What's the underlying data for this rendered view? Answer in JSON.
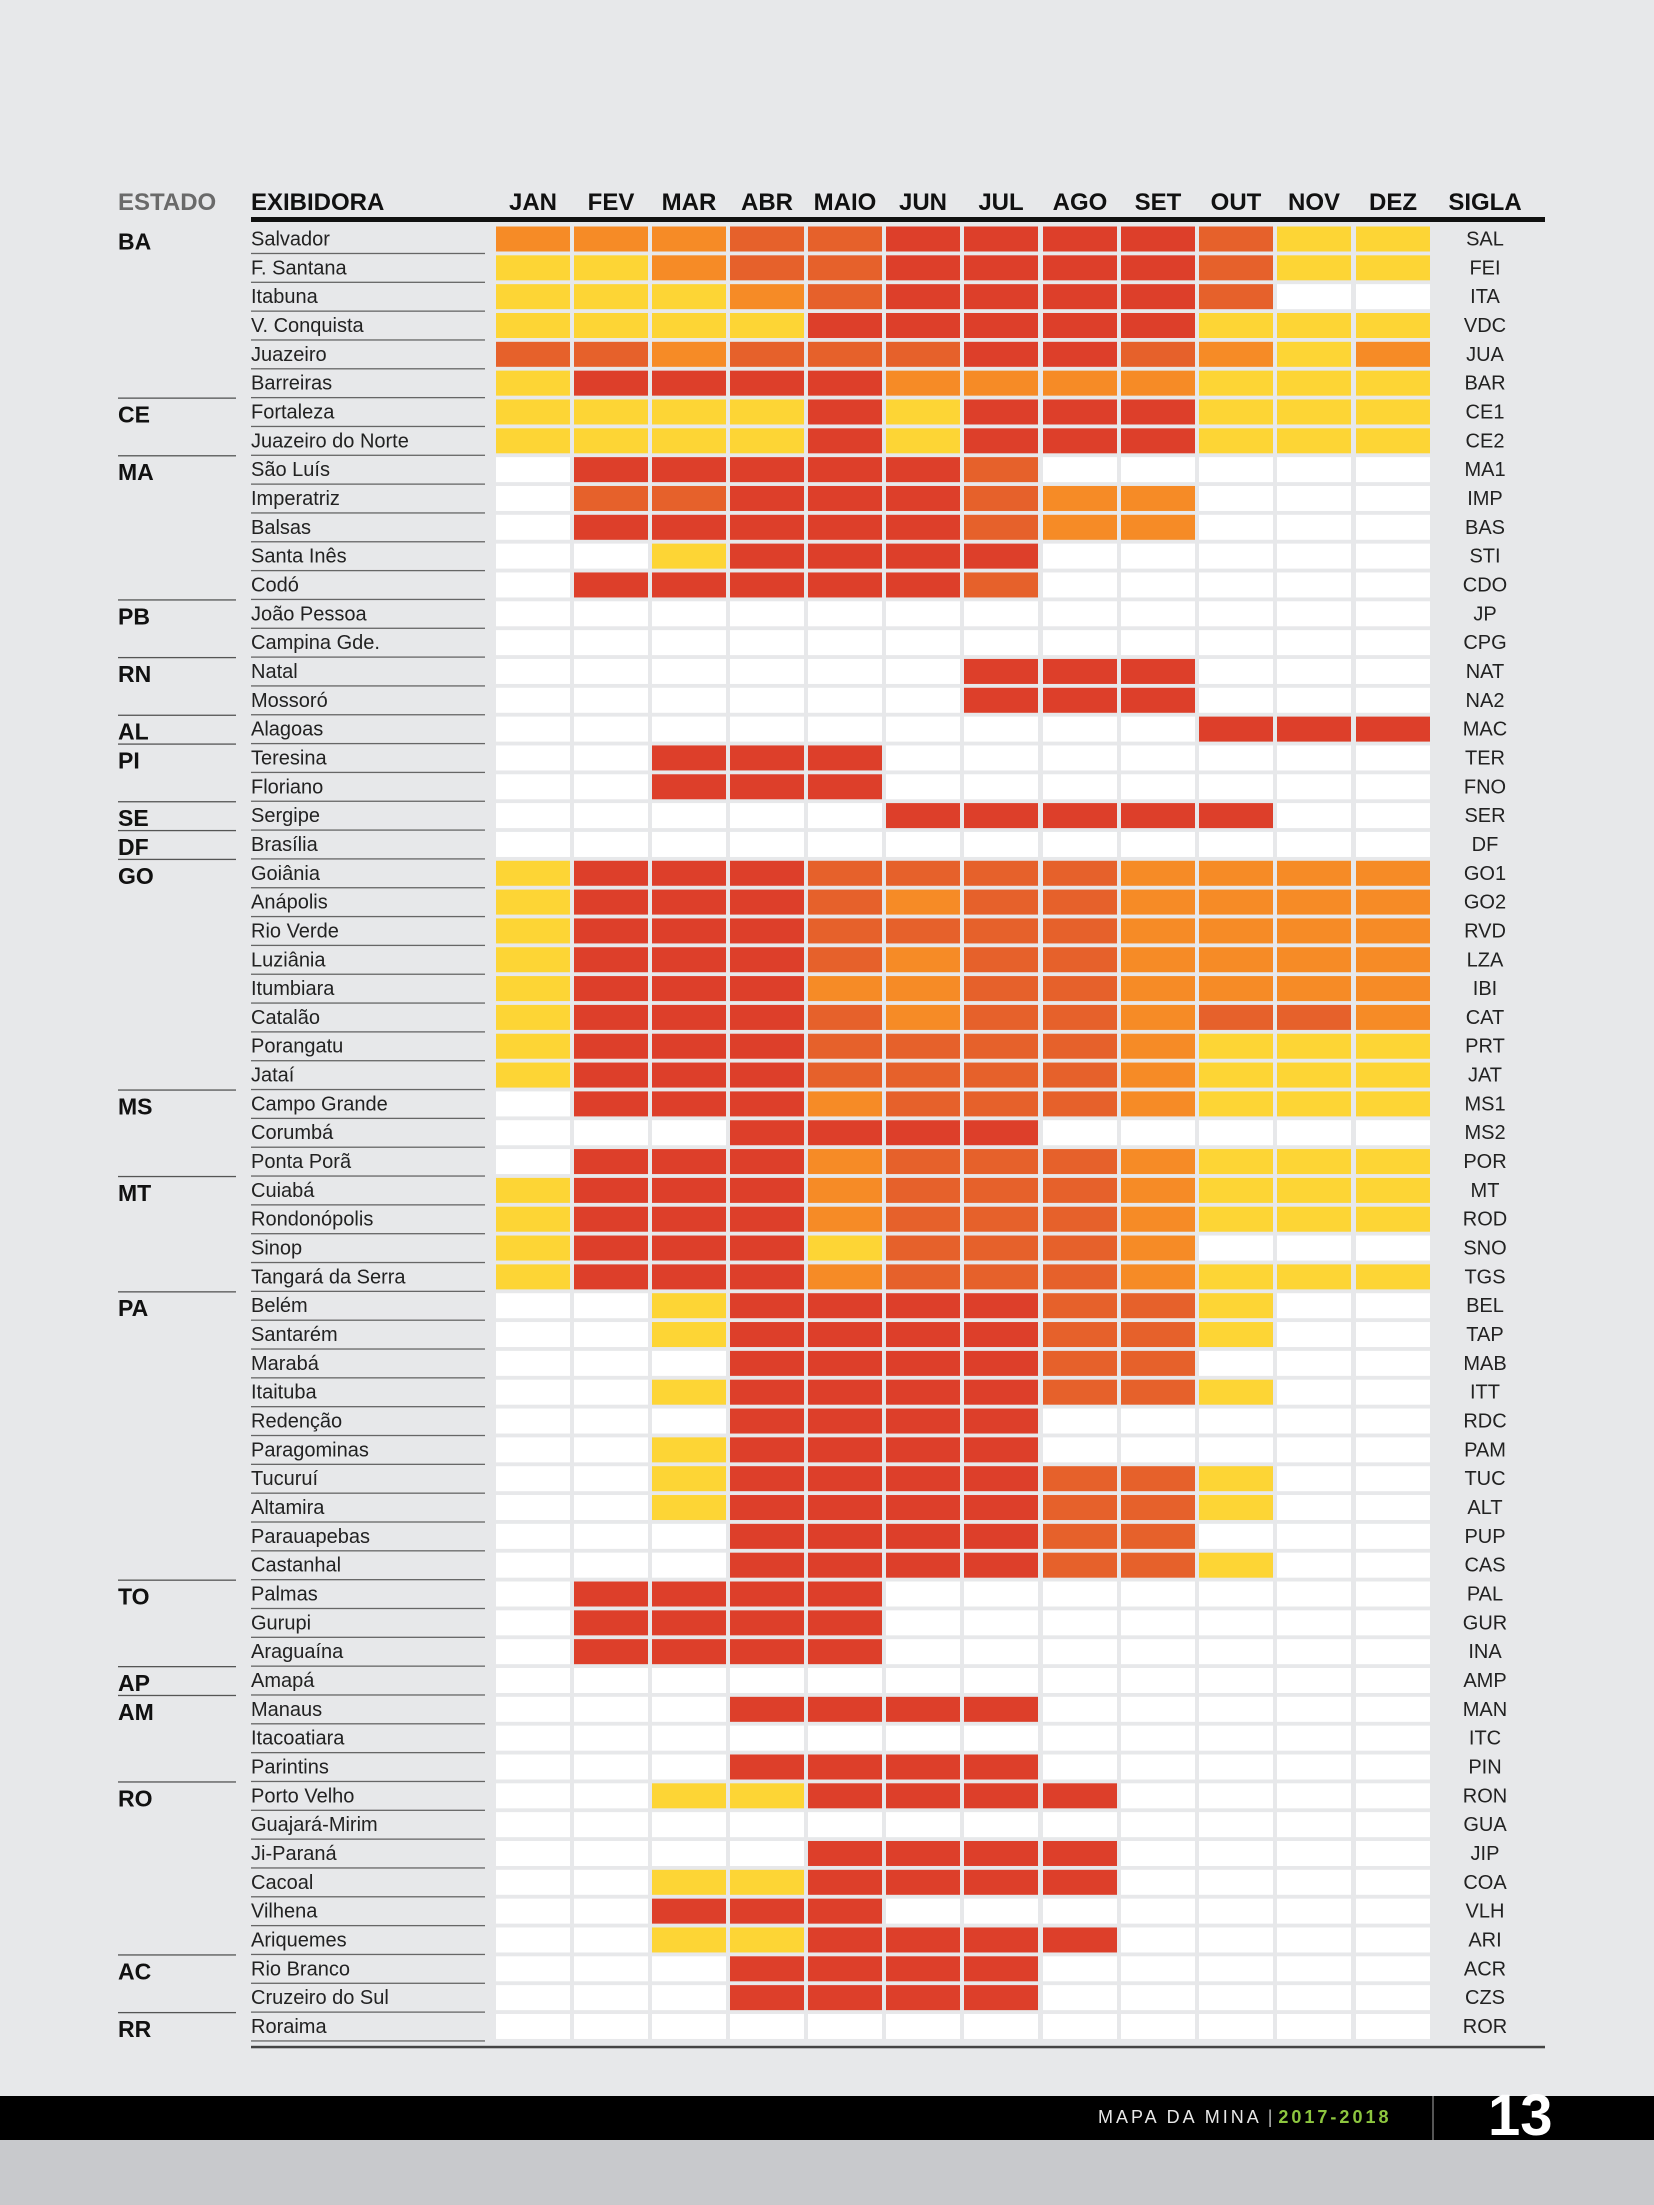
{
  "chart_data": {
    "type": "heatmap",
    "headers": {
      "estado": "ESTADO",
      "exibidora": "EXIBIDORA",
      "sigla": "SIGLA"
    },
    "months": [
      "JAN",
      "FEV",
      "MAR",
      "ABR",
      "MAIO",
      "JUN",
      "JUL",
      "AGO",
      "SET",
      "OUT",
      "NOV",
      "DEZ"
    ],
    "levels": {
      "0": "#ffffff",
      "1": "#fdd535",
      "2": "#f68b26",
      "3": "#e6612b",
      "4": "#dd3f2a"
    },
    "rows": [
      {
        "estado": "BA",
        "exibidora": "Salvador",
        "sigla": "SAL",
        "v": [
          2,
          2,
          2,
          3,
          3,
          4,
          4,
          4,
          4,
          3,
          1,
          1
        ]
      },
      {
        "estado": "",
        "exibidora": "F. Santana",
        "sigla": "FEI",
        "v": [
          1,
          1,
          2,
          3,
          3,
          4,
          4,
          4,
          4,
          3,
          1,
          1
        ]
      },
      {
        "estado": "",
        "exibidora": "Itabuna",
        "sigla": "ITA",
        "v": [
          1,
          1,
          1,
          2,
          3,
          4,
          4,
          4,
          4,
          3,
          0,
          0
        ]
      },
      {
        "estado": "",
        "exibidora": "V. Conquista",
        "sigla": "VDC",
        "v": [
          1,
          1,
          1,
          1,
          4,
          4,
          4,
          4,
          4,
          1,
          1,
          1
        ]
      },
      {
        "estado": "",
        "exibidora": "Juazeiro",
        "sigla": "JUA",
        "v": [
          3,
          3,
          2,
          3,
          3,
          3,
          4,
          4,
          3,
          2,
          1,
          2
        ]
      },
      {
        "estado": "",
        "exibidora": "Barreiras",
        "sigla": "BAR",
        "v": [
          1,
          4,
          4,
          4,
          4,
          2,
          2,
          2,
          2,
          1,
          1,
          1
        ]
      },
      {
        "estado": "CE",
        "exibidora": "Fortaleza",
        "sigla": "CE1",
        "v": [
          1,
          1,
          1,
          1,
          4,
          1,
          4,
          4,
          4,
          1,
          1,
          1
        ]
      },
      {
        "estado": "",
        "exibidora": "Juazeiro do Norte",
        "sigla": "CE2",
        "v": [
          1,
          1,
          1,
          1,
          4,
          1,
          4,
          4,
          4,
          1,
          1,
          1
        ]
      },
      {
        "estado": "MA",
        "exibidora": "São Luís",
        "sigla": "MA1",
        "v": [
          0,
          4,
          4,
          4,
          4,
          4,
          3,
          0,
          0,
          0,
          0,
          0
        ]
      },
      {
        "estado": "",
        "exibidora": "Imperatriz",
        "sigla": "IMP",
        "v": [
          0,
          3,
          3,
          4,
          4,
          4,
          3,
          2,
          2,
          0,
          0,
          0
        ]
      },
      {
        "estado": "",
        "exibidora": "Balsas",
        "sigla": "BAS",
        "v": [
          0,
          4,
          4,
          4,
          4,
          4,
          3,
          2,
          2,
          0,
          0,
          0
        ]
      },
      {
        "estado": "",
        "exibidora": "Santa Inês",
        "sigla": "STI",
        "v": [
          0,
          0,
          1,
          4,
          4,
          4,
          4,
          0,
          0,
          0,
          0,
          0
        ]
      },
      {
        "estado": "",
        "exibidora": "Codó",
        "sigla": "CDO",
        "v": [
          0,
          4,
          4,
          4,
          4,
          4,
          3,
          0,
          0,
          0,
          0,
          0
        ]
      },
      {
        "estado": "PB",
        "exibidora": "João Pessoa",
        "sigla": "JP",
        "v": [
          0,
          0,
          0,
          0,
          0,
          0,
          0,
          0,
          0,
          0,
          0,
          0
        ]
      },
      {
        "estado": "",
        "exibidora": "Campina Gde.",
        "sigla": "CPG",
        "v": [
          0,
          0,
          0,
          0,
          0,
          0,
          0,
          0,
          0,
          0,
          0,
          0
        ]
      },
      {
        "estado": "RN",
        "exibidora": "Natal",
        "sigla": "NAT",
        "v": [
          0,
          0,
          0,
          0,
          0,
          0,
          4,
          4,
          4,
          0,
          0,
          0
        ]
      },
      {
        "estado": "",
        "exibidora": "Mossoró",
        "sigla": "NA2",
        "v": [
          0,
          0,
          0,
          0,
          0,
          0,
          4,
          4,
          4,
          0,
          0,
          0
        ]
      },
      {
        "estado": "AL",
        "exibidora": "Alagoas",
        "sigla": "MAC",
        "v": [
          0,
          0,
          0,
          0,
          0,
          0,
          0,
          0,
          0,
          4,
          4,
          4
        ]
      },
      {
        "estado": "PI",
        "exibidora": "Teresina",
        "sigla": "TER",
        "v": [
          0,
          0,
          4,
          4,
          4,
          0,
          0,
          0,
          0,
          0,
          0,
          0
        ]
      },
      {
        "estado": "",
        "exibidora": "Floriano",
        "sigla": "FNO",
        "v": [
          0,
          0,
          4,
          4,
          4,
          0,
          0,
          0,
          0,
          0,
          0,
          0
        ]
      },
      {
        "estado": "SE",
        "exibidora": "Sergipe",
        "sigla": "SER",
        "v": [
          0,
          0,
          0,
          0,
          0,
          4,
          4,
          4,
          4,
          4,
          0,
          0
        ]
      },
      {
        "estado": "DF",
        "exibidora": "Brasília",
        "sigla": "DF",
        "v": [
          0,
          0,
          0,
          0,
          0,
          0,
          0,
          0,
          0,
          0,
          0,
          0
        ]
      },
      {
        "estado": "GO",
        "exibidora": "Goiânia",
        "sigla": "GO1",
        "v": [
          1,
          4,
          4,
          4,
          3,
          3,
          3,
          3,
          2,
          2,
          2,
          2
        ]
      },
      {
        "estado": "",
        "exibidora": "Anápolis",
        "sigla": "GO2",
        "v": [
          1,
          4,
          4,
          4,
          3,
          2,
          3,
          3,
          2,
          2,
          2,
          2
        ]
      },
      {
        "estado": "",
        "exibidora": "Rio Verde",
        "sigla": "RVD",
        "v": [
          1,
          4,
          4,
          4,
          3,
          3,
          3,
          3,
          2,
          2,
          2,
          2
        ]
      },
      {
        "estado": "",
        "exibidora": "Luziânia",
        "sigla": "LZA",
        "v": [
          1,
          4,
          4,
          4,
          3,
          2,
          3,
          3,
          2,
          2,
          2,
          2
        ]
      },
      {
        "estado": "",
        "exibidora": "Itumbiara",
        "sigla": "IBI",
        "v": [
          1,
          4,
          4,
          4,
          2,
          2,
          3,
          3,
          2,
          2,
          2,
          2
        ]
      },
      {
        "estado": "",
        "exibidora": "Catalão",
        "sigla": "CAT",
        "v": [
          1,
          4,
          4,
          4,
          3,
          2,
          3,
          3,
          2,
          3,
          3,
          2
        ]
      },
      {
        "estado": "",
        "exibidora": "Porangatu",
        "sigla": "PRT",
        "v": [
          1,
          4,
          4,
          4,
          3,
          3,
          3,
          3,
          2,
          1,
          1,
          1
        ]
      },
      {
        "estado": "",
        "exibidora": "Jataí",
        "sigla": "JAT",
        "v": [
          1,
          4,
          4,
          4,
          3,
          3,
          3,
          3,
          2,
          1,
          1,
          1
        ]
      },
      {
        "estado": "MS",
        "exibidora": "Campo Grande",
        "sigla": "MS1",
        "v": [
          0,
          4,
          4,
          4,
          2,
          3,
          3,
          3,
          2,
          1,
          1,
          1
        ]
      },
      {
        "estado": "",
        "exibidora": "Corumbá",
        "sigla": "MS2",
        "v": [
          0,
          0,
          0,
          4,
          4,
          4,
          4,
          0,
          0,
          0,
          0,
          0
        ]
      },
      {
        "estado": "",
        "exibidora": "Ponta Porã",
        "sigla": "POR",
        "v": [
          0,
          4,
          4,
          4,
          2,
          3,
          3,
          3,
          2,
          1,
          1,
          1
        ]
      },
      {
        "estado": "MT",
        "exibidora": "Cuiabá",
        "sigla": "MT",
        "v": [
          1,
          4,
          4,
          4,
          2,
          3,
          3,
          3,
          2,
          1,
          1,
          1
        ]
      },
      {
        "estado": "",
        "exibidora": "Rondonópolis",
        "sigla": "ROD",
        "v": [
          1,
          4,
          4,
          4,
          2,
          3,
          3,
          3,
          2,
          1,
          1,
          1
        ]
      },
      {
        "estado": "",
        "exibidora": "Sinop",
        "sigla": "SNO",
        "v": [
          1,
          4,
          4,
          4,
          1,
          3,
          3,
          3,
          2,
          0,
          0,
          0
        ]
      },
      {
        "estado": "",
        "exibidora": "Tangará da Serra",
        "sigla": "TGS",
        "v": [
          1,
          4,
          4,
          4,
          2,
          3,
          3,
          3,
          2,
          1,
          1,
          1
        ]
      },
      {
        "estado": "PA",
        "exibidora": "Belém",
        "sigla": "BEL",
        "v": [
          0,
          0,
          1,
          4,
          4,
          4,
          4,
          3,
          3,
          1,
          0,
          0
        ]
      },
      {
        "estado": "",
        "exibidora": "Santarém",
        "sigla": "TAP",
        "v": [
          0,
          0,
          1,
          4,
          4,
          4,
          4,
          3,
          3,
          1,
          0,
          0
        ]
      },
      {
        "estado": "",
        "exibidora": "Marabá",
        "sigla": "MAB",
        "v": [
          0,
          0,
          0,
          4,
          4,
          4,
          4,
          3,
          3,
          0,
          0,
          0
        ]
      },
      {
        "estado": "",
        "exibidora": "Itaituba",
        "sigla": "ITT",
        "v": [
          0,
          0,
          1,
          4,
          4,
          4,
          4,
          3,
          3,
          1,
          0,
          0
        ]
      },
      {
        "estado": "",
        "exibidora": "Redenção",
        "sigla": "RDC",
        "v": [
          0,
          0,
          0,
          4,
          4,
          4,
          4,
          0,
          0,
          0,
          0,
          0
        ]
      },
      {
        "estado": "",
        "exibidora": "Paragominas",
        "sigla": "PAM",
        "v": [
          0,
          0,
          1,
          4,
          4,
          4,
          4,
          0,
          0,
          0,
          0,
          0
        ]
      },
      {
        "estado": "",
        "exibidora": "Tucuruí",
        "sigla": "TUC",
        "v": [
          0,
          0,
          1,
          4,
          4,
          4,
          4,
          3,
          3,
          1,
          0,
          0
        ]
      },
      {
        "estado": "",
        "exibidora": "Altamira",
        "sigla": "ALT",
        "v": [
          0,
          0,
          1,
          4,
          4,
          4,
          4,
          3,
          3,
          1,
          0,
          0
        ]
      },
      {
        "estado": "",
        "exibidora": "Parauapebas",
        "sigla": "PUP",
        "v": [
          0,
          0,
          0,
          4,
          4,
          4,
          4,
          3,
          3,
          0,
          0,
          0
        ]
      },
      {
        "estado": "",
        "exibidora": "Castanhal",
        "sigla": "CAS",
        "v": [
          0,
          0,
          0,
          4,
          4,
          4,
          4,
          3,
          3,
          1,
          0,
          0
        ]
      },
      {
        "estado": "TO",
        "exibidora": "Palmas",
        "sigla": "PAL",
        "v": [
          0,
          4,
          4,
          4,
          4,
          0,
          0,
          0,
          0,
          0,
          0,
          0
        ]
      },
      {
        "estado": "",
        "exibidora": "Gurupi",
        "sigla": "GUR",
        "v": [
          0,
          4,
          4,
          4,
          4,
          0,
          0,
          0,
          0,
          0,
          0,
          0
        ]
      },
      {
        "estado": "",
        "exibidora": "Araguaína",
        "sigla": "INA",
        "v": [
          0,
          4,
          4,
          4,
          4,
          0,
          0,
          0,
          0,
          0,
          0,
          0
        ]
      },
      {
        "estado": "AP",
        "exibidora": "Amapá",
        "sigla": "AMP",
        "v": [
          0,
          0,
          0,
          0,
          0,
          0,
          0,
          0,
          0,
          0,
          0,
          0
        ]
      },
      {
        "estado": "AM",
        "exibidora": "Manaus",
        "sigla": "MAN",
        "v": [
          0,
          0,
          0,
          4,
          4,
          4,
          4,
          0,
          0,
          0,
          0,
          0
        ]
      },
      {
        "estado": "",
        "exibidora": "Itacoatiara",
        "sigla": "ITC",
        "v": [
          0,
          0,
          0,
          0,
          0,
          0,
          0,
          0,
          0,
          0,
          0,
          0
        ]
      },
      {
        "estado": "",
        "exibidora": "Parintins",
        "sigla": "PIN",
        "v": [
          0,
          0,
          0,
          4,
          4,
          4,
          4,
          0,
          0,
          0,
          0,
          0
        ]
      },
      {
        "estado": "RO",
        "exibidora": "Porto Velho",
        "sigla": "RON",
        "v": [
          0,
          0,
          1,
          1,
          4,
          4,
          4,
          4,
          0,
          0,
          0,
          0
        ]
      },
      {
        "estado": "",
        "exibidora": "Guajará-Mirim",
        "sigla": "GUA",
        "v": [
          0,
          0,
          0,
          0,
          0,
          0,
          0,
          0,
          0,
          0,
          0,
          0
        ]
      },
      {
        "estado": "",
        "exibidora": "Ji-Paraná",
        "sigla": "JIP",
        "v": [
          0,
          0,
          0,
          0,
          4,
          4,
          4,
          4,
          0,
          0,
          0,
          0
        ]
      },
      {
        "estado": "",
        "exibidora": "Cacoal",
        "sigla": "COA",
        "v": [
          0,
          0,
          1,
          1,
          4,
          4,
          4,
          4,
          0,
          0,
          0,
          0
        ]
      },
      {
        "estado": "",
        "exibidora": "Vilhena",
        "sigla": "VLH",
        "v": [
          0,
          0,
          4,
          4,
          4,
          0,
          0,
          0,
          0,
          0,
          0,
          0
        ]
      },
      {
        "estado": "",
        "exibidora": "Ariquemes",
        "sigla": "ARI",
        "v": [
          0,
          0,
          1,
          1,
          4,
          4,
          4,
          4,
          0,
          0,
          0,
          0
        ]
      },
      {
        "estado": "AC",
        "exibidora": "Rio Branco",
        "sigla": "ACR",
        "v": [
          0,
          0,
          0,
          4,
          4,
          4,
          4,
          0,
          0,
          0,
          0,
          0
        ]
      },
      {
        "estado": "",
        "exibidora": "Cruzeiro do Sul",
        "sigla": "CZS",
        "v": [
          0,
          0,
          0,
          4,
          4,
          4,
          4,
          0,
          0,
          0,
          0,
          0
        ]
      },
      {
        "estado": "RR",
        "exibidora": "Roraima",
        "sigla": "ROR",
        "v": [
          0,
          0,
          0,
          0,
          0,
          0,
          0,
          0,
          0,
          0,
          0,
          0
        ]
      }
    ]
  },
  "footer": {
    "publication": "MAPA DA MINA",
    "separator": "|",
    "year": "2017-2018",
    "page_number": "13"
  }
}
